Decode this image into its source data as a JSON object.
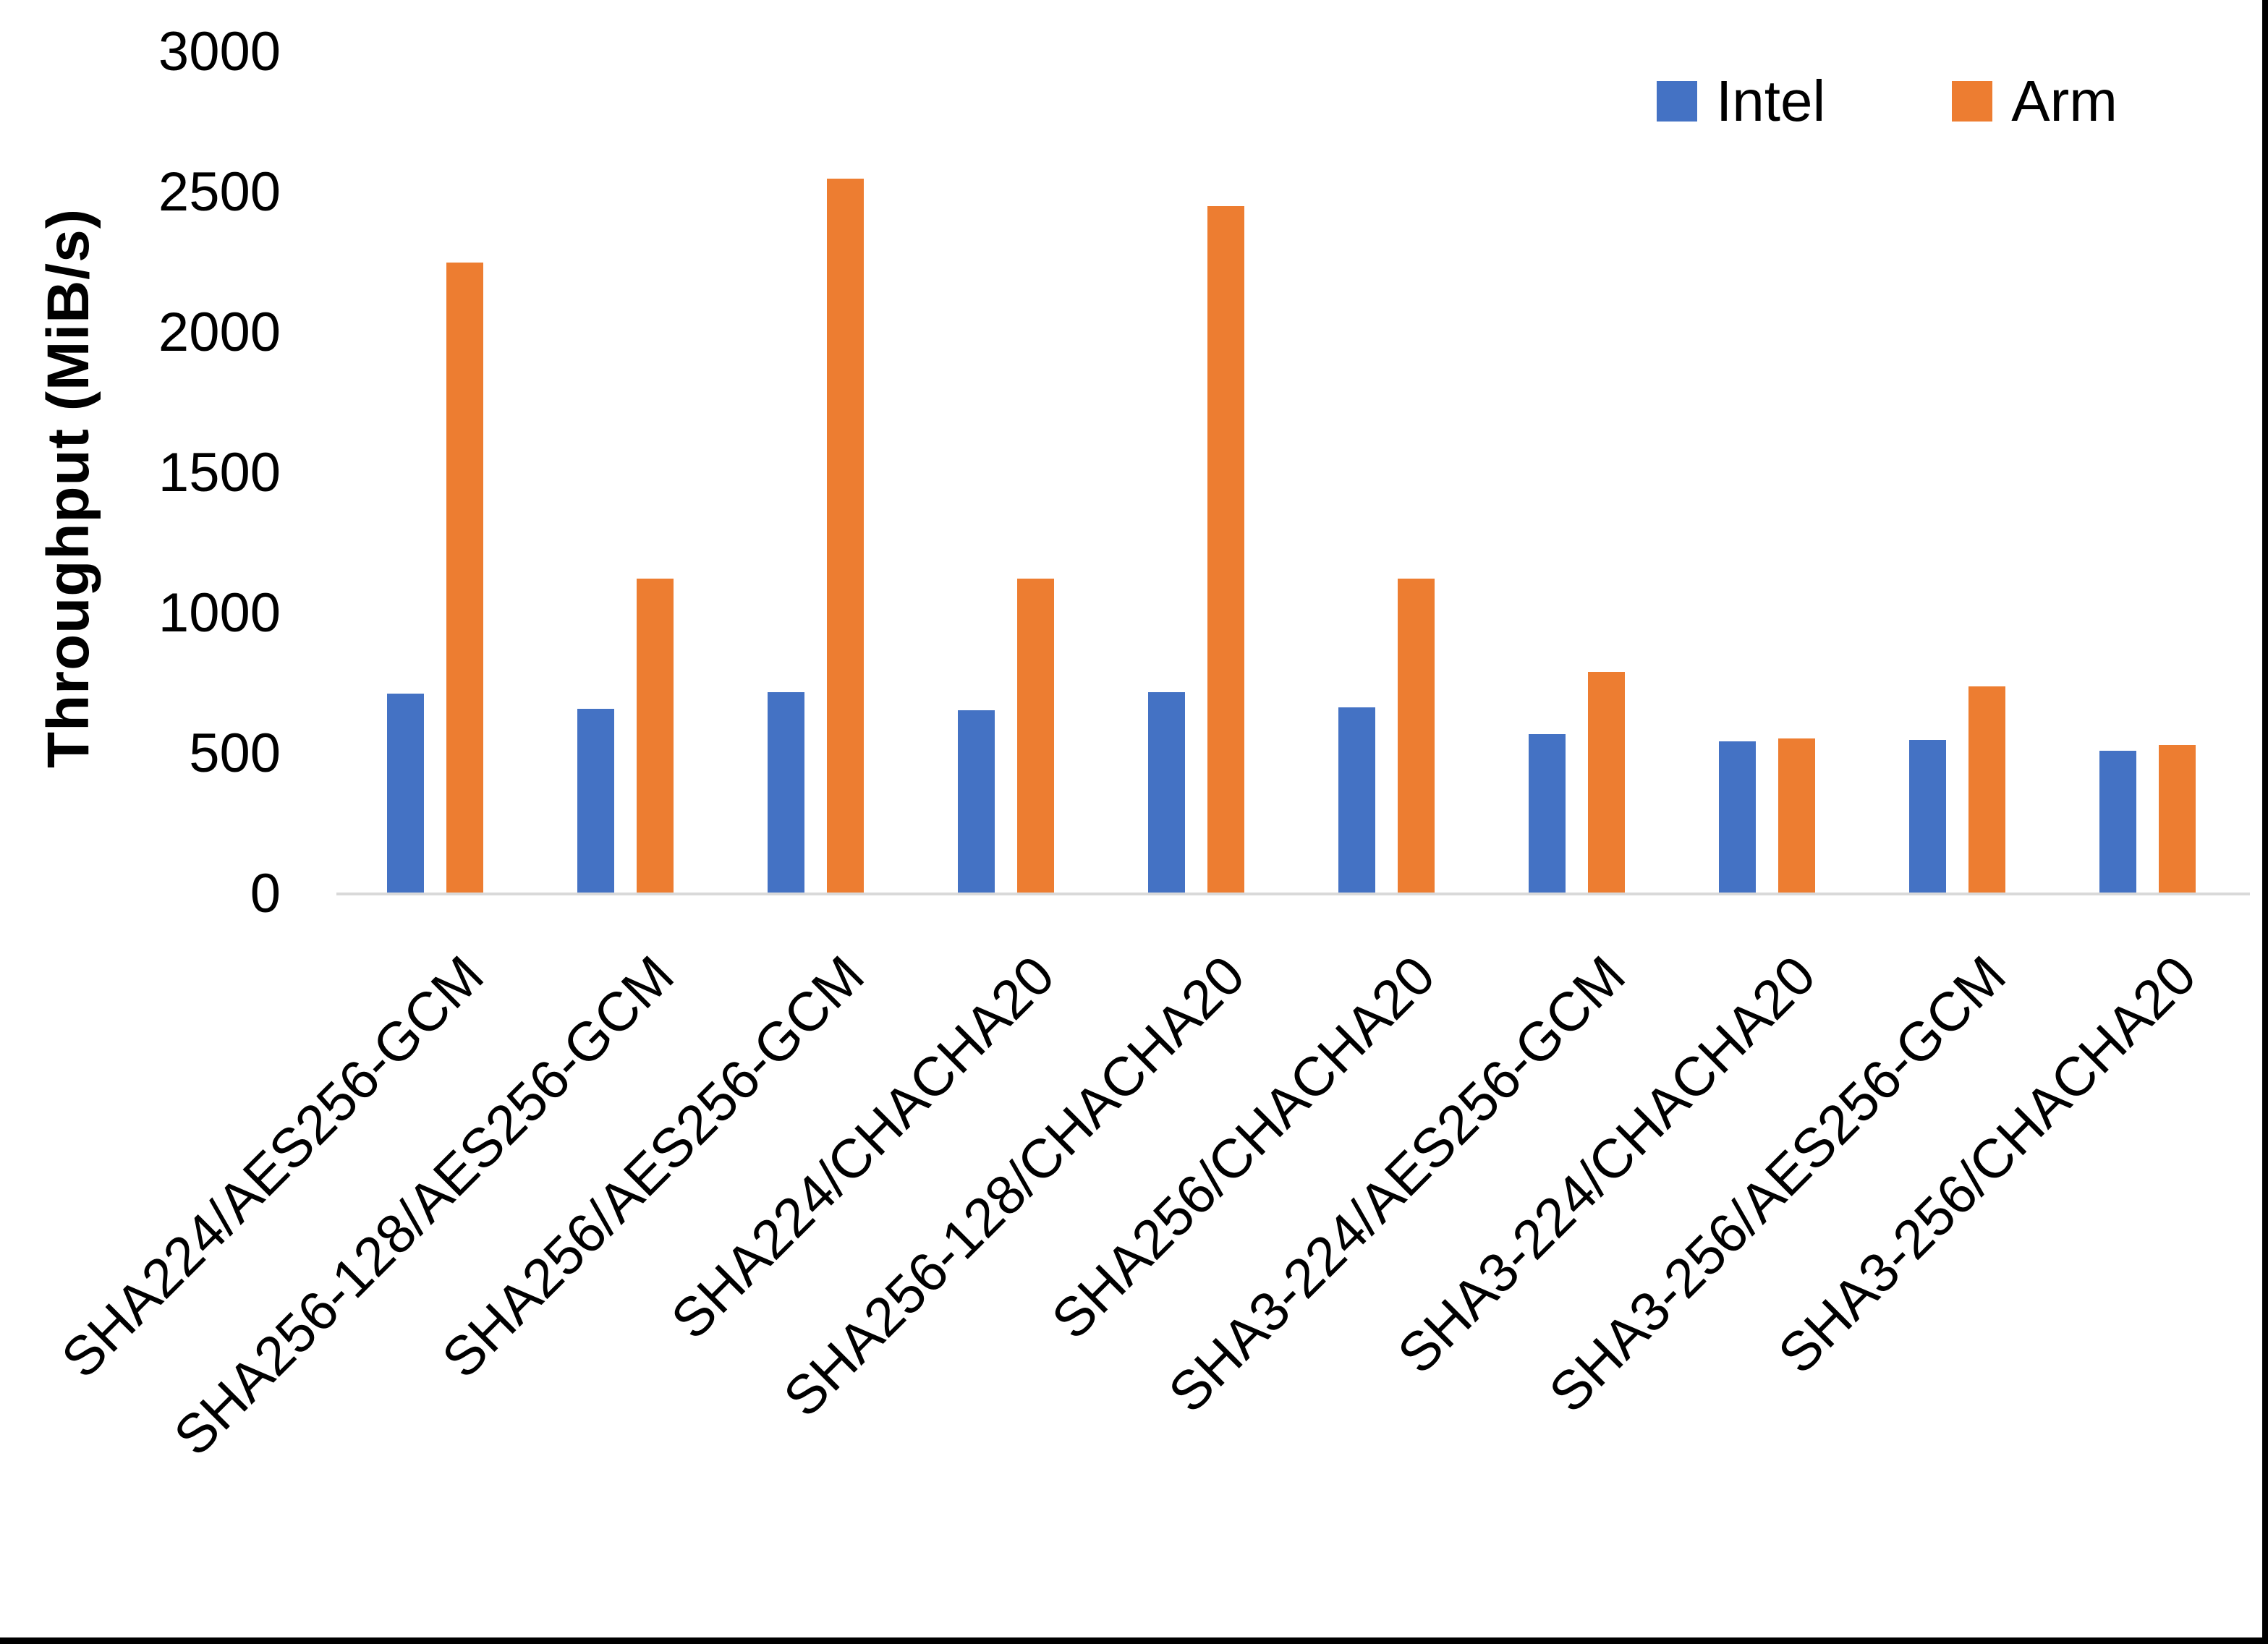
{
  "chart_data": {
    "type": "bar",
    "title": "",
    "xlabel": "",
    "ylabel": "Throughput (MiB/s)",
    "ylim": [
      0,
      3000
    ],
    "yticks": [
      0,
      500,
      1000,
      1500,
      2000,
      2500,
      3000
    ],
    "grid": false,
    "legend_position": "top-right",
    "axis_line_color": "#D9D9D9",
    "categories": [
      "SHA224/AES256-GCM",
      "SHA256-128/AES256-GCM",
      "SHA256/AES256-GCM",
      "SHA224/CHACHA20",
      "SHA256-128/CHACHA20",
      "SHA256/CHACHA20",
      "SHA3-224/AES256-GCM",
      "SHA3-224/CHACHA20",
      "SHA3-256/AES256-GCM",
      "SHA3-256/CHACHA20"
    ],
    "series": [
      {
        "name": "Intel",
        "color": "#4472C4",
        "values": [
          715,
          660,
          720,
          655,
          720,
          665,
          570,
          545,
          550,
          510
        ]
      },
      {
        "name": "Arm",
        "color": "#ED7D31",
        "values": [
          2250,
          1125,
          2550,
          1125,
          2450,
          1125,
          790,
          555,
          740,
          530
        ]
      }
    ]
  },
  "legend": {
    "items": [
      {
        "label": "Intel",
        "color": "#4472C4"
      },
      {
        "label": "Arm",
        "color": "#ED7D31"
      }
    ]
  },
  "page": {
    "border_color": "#000000"
  }
}
